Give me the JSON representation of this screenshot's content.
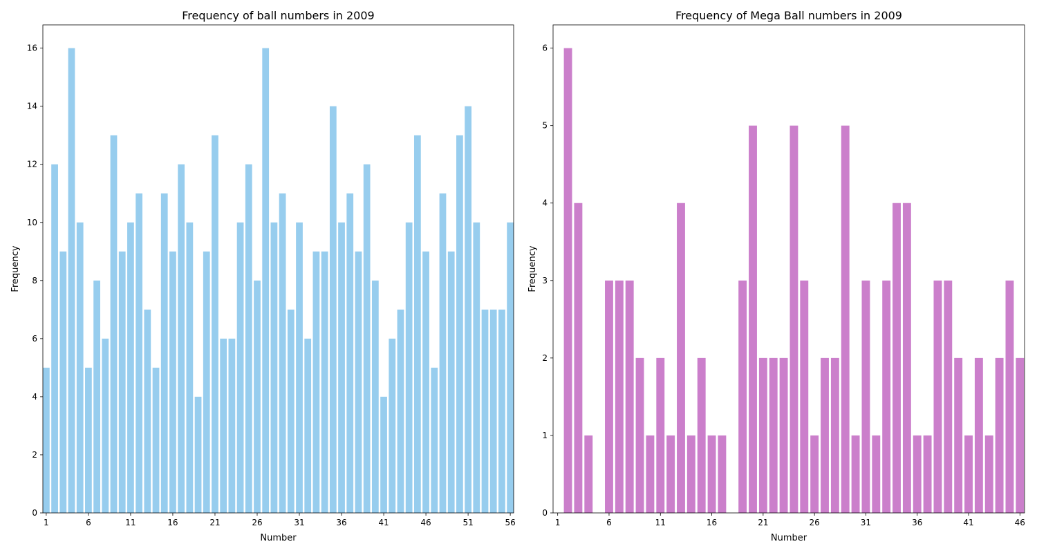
{
  "chart_data": [
    {
      "type": "bar",
      "title": "Frequency of ball numbers in 2009",
      "xlabel": "Number",
      "ylabel": "Frequency",
      "color": "#97cdee",
      "xticks": [
        1,
        6,
        11,
        16,
        21,
        26,
        31,
        36,
        41,
        46,
        51,
        56
      ],
      "yticks": [
        0,
        2,
        4,
        6,
        8,
        10,
        12,
        14,
        16
      ],
      "xlim": [
        0.6,
        56.4
      ],
      "ylim": [
        0,
        16.8
      ],
      "x": [
        1,
        2,
        3,
        4,
        5,
        6,
        7,
        8,
        9,
        10,
        11,
        12,
        13,
        14,
        15,
        16,
        17,
        18,
        19,
        20,
        21,
        22,
        23,
        24,
        25,
        26,
        27,
        28,
        29,
        30,
        31,
        32,
        33,
        34,
        35,
        36,
        37,
        38,
        39,
        40,
        41,
        42,
        43,
        44,
        45,
        46,
        47,
        48,
        49,
        50,
        51,
        52,
        53,
        54,
        55,
        56
      ],
      "values": [
        5,
        12,
        9,
        16,
        10,
        5,
        8,
        6,
        13,
        9,
        10,
        11,
        7,
        5,
        11,
        9,
        12,
        10,
        4,
        9,
        13,
        6,
        6,
        10,
        12,
        8,
        16,
        10,
        11,
        7,
        10,
        6,
        9,
        9,
        14,
        10,
        11,
        9,
        12,
        8,
        4,
        6,
        7,
        10,
        13,
        9,
        5,
        11,
        9,
        13,
        14,
        10,
        7,
        7,
        7,
        10
      ]
    },
    {
      "type": "bar",
      "title": "Frequency of Mega Ball numbers in 2009",
      "xlabel": "Number",
      "ylabel": "Frequency",
      "color": "#cb7fcb",
      "xticks": [
        1,
        6,
        11,
        16,
        21,
        26,
        31,
        36,
        41,
        46
      ],
      "yticks": [
        0,
        1,
        2,
        3,
        4,
        5,
        6
      ],
      "xlim": [
        0.55,
        46.45
      ],
      "ylim": [
        0,
        6.3
      ],
      "x": [
        1,
        2,
        3,
        4,
        5,
        6,
        7,
        8,
        9,
        10,
        11,
        12,
        13,
        14,
        15,
        16,
        17,
        18,
        19,
        20,
        21,
        22,
        23,
        24,
        25,
        26,
        27,
        28,
        29,
        30,
        31,
        32,
        33,
        34,
        35,
        36,
        37,
        38,
        39,
        40,
        41,
        42,
        43,
        44,
        45,
        46
      ],
      "values": [
        0,
        6,
        4,
        1,
        0,
        3,
        3,
        3,
        2,
        1,
        2,
        1,
        4,
        1,
        2,
        1,
        1,
        0,
        3,
        5,
        2,
        2,
        2,
        5,
        3,
        1,
        2,
        2,
        5,
        1,
        3,
        1,
        3,
        4,
        4,
        1,
        1,
        3,
        3,
        2,
        1,
        2,
        1,
        2,
        3,
        2
      ]
    }
  ]
}
